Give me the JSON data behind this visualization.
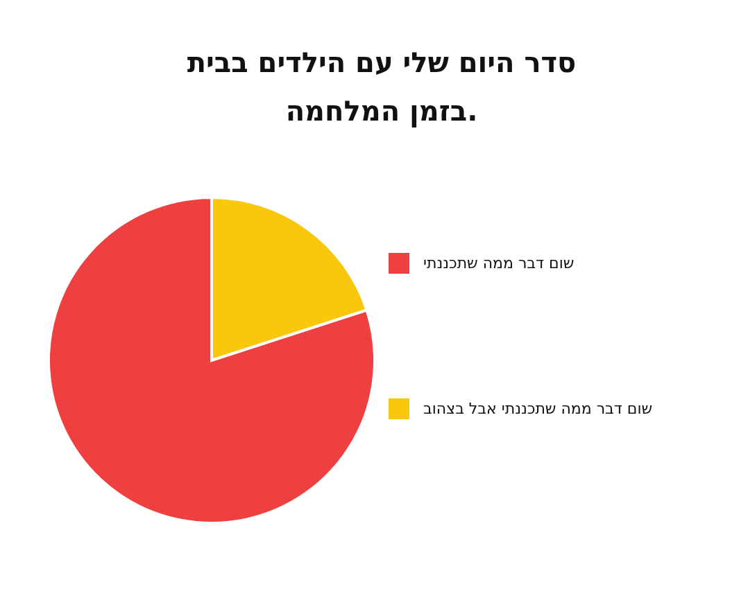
{
  "chart_data": {
    "type": "pie",
    "title": "סדר היום שלי עם הילדים בבית\nבזמן המלחמה.",
    "categories": [
      "שום דבר ממה שתכננתי",
      "שום דבר ממה שתכננתי אבל בצהוב"
    ],
    "values": [
      80,
      20
    ],
    "colors": [
      "#ee4040",
      "#f9c80c"
    ],
    "legend": "right"
  }
}
